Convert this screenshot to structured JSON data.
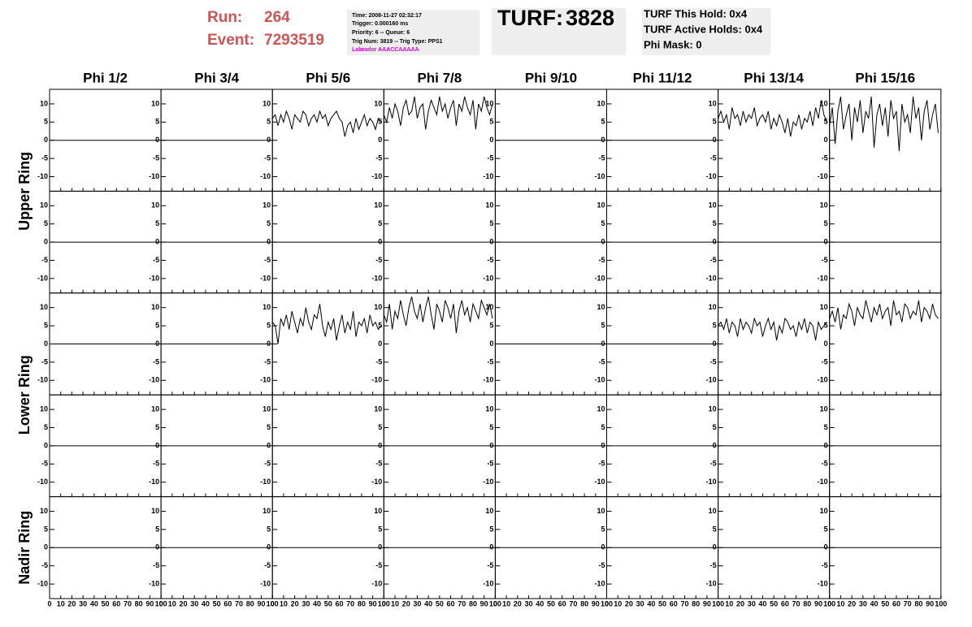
{
  "header": {
    "run_label": "Run:",
    "run": 264,
    "event_label": "Event:",
    "event": 7293519,
    "info": [
      "Time: 2008-11-27 02:32:17",
      "Trigger: 0.000160 ms",
      "Priority: 6 -- Queue: 6",
      "Trig Num: 3819 -- Trig Type: PPS1"
    ],
    "labrador": "Labrador AAACCAAAAA",
    "turf_label": "TURF:",
    "turf": 3828,
    "turf_info": [
      "TURF This Hold: 0x4",
      "TURF Active Holds: 0x4",
      "Phi Mask: 0"
    ]
  },
  "columns": [
    "Phi 1/2",
    "Phi 3/4",
    "Phi 5/6",
    "Phi 7/8",
    "Phi 9/10",
    "Phi 11/12",
    "Phi 13/14",
    "Phi 15/16"
  ],
  "rings": [
    {
      "label": "Upper Ring",
      "rows": [
        0,
        1
      ]
    },
    {
      "label": "Lower Ring",
      "rows": [
        2,
        3
      ]
    },
    {
      "label": "Nadir Ring",
      "rows": [
        4
      ]
    }
  ],
  "axes": {
    "xlim": [
      0,
      100
    ],
    "xticks": [
      0,
      10,
      20,
      30,
      40,
      50,
      60,
      70,
      80,
      90,
      100
    ],
    "ylim": [
      -14,
      14
    ],
    "yticks": [
      -10,
      -5,
      0,
      5,
      10
    ]
  },
  "sample_x": [
    0,
    2.5,
    5,
    7.5,
    10,
    12.5,
    15,
    17.5,
    20,
    22.5,
    25,
    27.5,
    30,
    32.5,
    35,
    37.5,
    40,
    42.5,
    45,
    47.5,
    50,
    52.5,
    55,
    57.5,
    60,
    62.5,
    65,
    67.5,
    70,
    72.5,
    75,
    77.5,
    80,
    82.5,
    85,
    87.5,
    90,
    92.5,
    95,
    97.5
  ],
  "panels": [
    [
      {
        "x": [
          0,
          100
        ],
        "values": [
          0,
          0
        ]
      },
      {
        "x": [
          0,
          100
        ],
        "values": [
          0,
          0
        ]
      },
      {
        "values": [
          6,
          7,
          4,
          7,
          5,
          8,
          6,
          3,
          7,
          6,
          5,
          8,
          7,
          4,
          6,
          7,
          5,
          8,
          6,
          7,
          4,
          6,
          7,
          8,
          6,
          5,
          1,
          4,
          5,
          2,
          6,
          3,
          5,
          7,
          4,
          6,
          5,
          3,
          6,
          5
        ]
      },
      {
        "values": [
          7,
          5,
          9,
          6,
          10,
          8,
          4,
          9,
          11,
          7,
          8,
          12,
          6,
          9,
          10,
          3,
          8,
          11,
          9,
          7,
          12,
          8,
          10,
          6,
          9,
          11,
          4,
          10,
          8,
          12,
          9,
          7,
          11,
          3,
          10,
          8,
          12,
          9,
          7,
          10
        ]
      },
      {
        "x": [
          0,
          100
        ],
        "values": [
          0,
          0
        ]
      },
      {
        "x": [
          0,
          100
        ],
        "values": [
          0,
          0
        ]
      },
      {
        "values": [
          6,
          8,
          5,
          7,
          3,
          9,
          6,
          7,
          4,
          8,
          5,
          7,
          6,
          9,
          4,
          6,
          7,
          5,
          8,
          3,
          6,
          4,
          7,
          5,
          2,
          6,
          1,
          5,
          4,
          7,
          3,
          6,
          5,
          8,
          4,
          9,
          6,
          11,
          7,
          5
        ]
      },
      {
        "values": [
          4,
          9,
          -1,
          8,
          12,
          3,
          7,
          10,
          0,
          9,
          5,
          11,
          2,
          8,
          6,
          12,
          -2,
          7,
          10,
          4,
          9,
          1,
          11,
          6,
          8,
          -3,
          10,
          5,
          7,
          2,
          12,
          6,
          9,
          0,
          8,
          11,
          3,
          7,
          10,
          2
        ]
      }
    ],
    [
      {
        "x": [
          0,
          100
        ],
        "values": [
          0,
          0
        ]
      },
      {
        "x": [
          0,
          100
        ],
        "values": [
          0,
          0
        ]
      },
      {
        "x": [
          0,
          100
        ],
        "values": [
          0,
          0
        ]
      },
      {
        "x": [
          0,
          100
        ],
        "values": [
          0,
          0
        ]
      },
      {
        "x": [
          0,
          100
        ],
        "values": [
          0,
          0
        ]
      },
      {
        "x": [
          0,
          100
        ],
        "values": [
          0,
          0
        ]
      },
      {
        "x": [
          0,
          100
        ],
        "values": [
          0,
          0
        ]
      },
      {
        "x": [
          0,
          100
        ],
        "values": [
          0,
          0
        ]
      }
    ],
    [
      {
        "x": [
          0,
          100
        ],
        "values": [
          0,
          0
        ]
      },
      {
        "x": [
          0,
          100
        ],
        "values": [
          0,
          0
        ]
      },
      {
        "values": [
          6,
          5,
          0,
          7,
          5,
          8,
          4,
          9,
          6,
          3,
          7,
          5,
          10,
          6,
          4,
          8,
          7,
          11,
          5,
          2,
          6,
          4,
          7,
          1,
          5,
          8,
          3,
          6,
          4,
          9,
          2,
          6,
          5,
          7,
          3,
          8,
          5,
          6,
          4,
          5
        ]
      },
      {
        "values": [
          8,
          6,
          11,
          4,
          9,
          7,
          12,
          8,
          5,
          10,
          13,
          9,
          7,
          11,
          6,
          10,
          13,
          8,
          4,
          11,
          9,
          6,
          12,
          10,
          7,
          11,
          3,
          9,
          12,
          8,
          10,
          6,
          11,
          9,
          7,
          12,
          10,
          8,
          11,
          7
        ]
      },
      {
        "x": [
          0,
          100
        ],
        "values": [
          0,
          0
        ]
      },
      {
        "x": [
          0,
          100
        ],
        "values": [
          0,
          0
        ]
      },
      {
        "values": [
          5,
          6,
          4,
          7,
          3,
          6,
          5,
          2,
          7,
          4,
          6,
          5,
          3,
          7,
          5,
          6,
          2,
          5,
          7,
          4,
          6,
          1,
          5,
          3,
          7,
          6,
          4,
          5,
          2,
          6,
          4,
          7,
          3,
          6,
          5,
          1,
          6,
          4,
          5,
          6
        ]
      },
      {
        "values": [
          7,
          9,
          6,
          10,
          4,
          8,
          7,
          11,
          9,
          5,
          10,
          8,
          7,
          12,
          9,
          6,
          10,
          8,
          11,
          7,
          9,
          10,
          5,
          12,
          8,
          9,
          6,
          11,
          10,
          7,
          9,
          8,
          12,
          6,
          10,
          9,
          7,
          11,
          8,
          7
        ]
      }
    ],
    [
      {
        "x": [
          0,
          100
        ],
        "values": [
          0,
          0
        ]
      },
      {
        "x": [
          0,
          100
        ],
        "values": [
          0,
          0
        ]
      },
      {
        "x": [
          0,
          100
        ],
        "values": [
          0,
          0
        ]
      },
      {
        "x": [
          0,
          100
        ],
        "values": [
          0,
          0
        ]
      },
      {
        "x": [
          0,
          100
        ],
        "values": [
          0,
          0
        ]
      },
      {
        "x": [
          0,
          100
        ],
        "values": [
          0,
          0
        ]
      },
      {
        "x": [
          0,
          100
        ],
        "values": [
          0,
          0
        ]
      },
      {
        "x": [
          0,
          100
        ],
        "values": [
          0,
          0
        ]
      }
    ],
    [
      {
        "x": [
          0,
          100
        ],
        "values": [
          0,
          0
        ]
      },
      {
        "x": [
          0,
          100
        ],
        "values": [
          0,
          0
        ]
      },
      {
        "x": [
          0,
          100
        ],
        "values": [
          0,
          0
        ]
      },
      {
        "x": [
          0,
          100
        ],
        "values": [
          0,
          0
        ]
      },
      {
        "x": [
          0,
          100
        ],
        "values": [
          0,
          0
        ]
      },
      {
        "x": [
          0,
          100
        ],
        "values": [
          0,
          0
        ]
      },
      {
        "x": [
          0,
          100
        ],
        "values": [
          0,
          0
        ]
      },
      {
        "x": [
          0,
          100
        ],
        "values": [
          0,
          0
        ]
      }
    ]
  ]
}
